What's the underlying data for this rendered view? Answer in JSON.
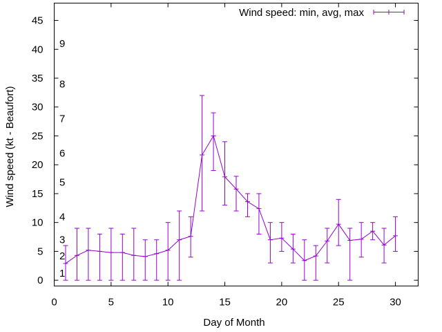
{
  "chart_data": {
    "type": "line",
    "title": "",
    "xlabel": "Day of Month",
    "ylabel": "Wind speed (kt - Beaufort)",
    "xlim": [
      0,
      32
    ],
    "ylim": [
      -1,
      48
    ],
    "xticks": [
      0,
      5,
      10,
      15,
      20,
      25,
      30
    ],
    "yticks": [
      0,
      5,
      10,
      15,
      20,
      25,
      30,
      35,
      40,
      45
    ],
    "legend_position": "top-right",
    "grid": false,
    "beaufort_labels": [
      {
        "label": "1",
        "value": 1.2
      },
      {
        "label": "2",
        "value": 4.2
      },
      {
        "label": "3",
        "value": 7.0
      },
      {
        "label": "4",
        "value": 11.0
      },
      {
        "label": "5",
        "value": 17.0
      },
      {
        "label": "6",
        "value": 22.0
      },
      {
        "label": "7",
        "value": 28.0
      },
      {
        "label": "8",
        "value": 34.0
      },
      {
        "label": "9",
        "value": 41.0
      }
    ],
    "series": [
      {
        "name": "Wind speed: min, avg, max",
        "color": "#9400d3",
        "x": [
          1,
          2,
          3,
          4,
          5,
          6,
          7,
          8,
          9,
          10,
          11,
          12,
          13,
          14,
          15,
          16,
          17,
          18,
          19,
          20,
          21,
          22,
          23,
          24,
          25,
          26,
          27,
          28,
          29,
          30
        ],
        "avg": [
          2.9,
          4.3,
          5.2,
          5.0,
          4.8,
          4.8,
          4.3,
          4.1,
          4.6,
          5.2,
          7.0,
          7.6,
          21.7,
          25.0,
          17.9,
          15.8,
          13.6,
          12.4,
          7.0,
          7.3,
          5.4,
          3.4,
          4.2,
          6.8,
          9.7,
          6.9,
          7.1,
          8.5,
          6.1,
          7.7
        ],
        "min": [
          0,
          0,
          0,
          0,
          0,
          0,
          0,
          0,
          0,
          0,
          0,
          4,
          12,
          19,
          13,
          12,
          11,
          8,
          3,
          5,
          3,
          0,
          0,
          3,
          6,
          0,
          4,
          7,
          3,
          5
        ],
        "max": [
          6,
          9,
          9,
          8,
          9,
          8,
          9,
          7,
          7,
          10,
          12,
          11,
          32,
          29,
          24,
          18,
          15,
          15,
          10,
          10,
          8,
          7,
          6,
          9,
          14,
          9,
          10,
          10,
          9,
          11
        ]
      }
    ]
  }
}
